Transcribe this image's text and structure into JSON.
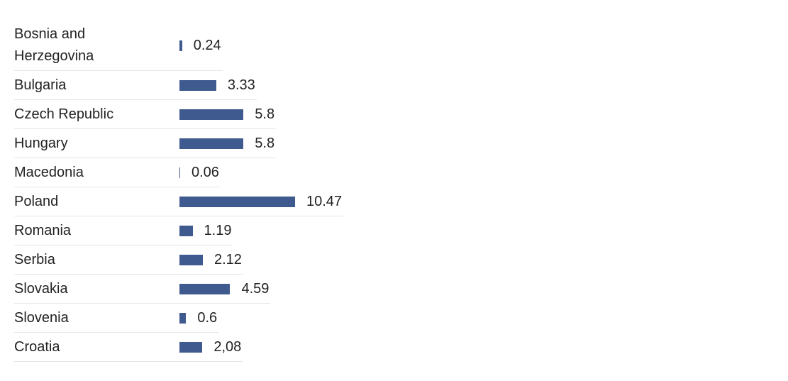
{
  "chart_data": {
    "type": "bar",
    "categories": [
      "Bosnia and Herzegovina",
      "Bulgaria",
      "Czech Republic",
      "Hungary",
      "Macedonia",
      "Poland",
      "Romania",
      "Serbia",
      "Slovakia",
      "Slovenia",
      "Croatia"
    ],
    "values": [
      0.24,
      3.33,
      5.8,
      5.8,
      0.06,
      10.47,
      1.19,
      2.12,
      4.59,
      0.6,
      2.08
    ],
    "value_labels": [
      "0.24",
      "3.33",
      "5.8",
      "5.8",
      "0.06",
      "10.47",
      "1.19",
      "2.12",
      "4.59",
      "0.6",
      "2,08"
    ],
    "color": "#3f5a8f"
  }
}
